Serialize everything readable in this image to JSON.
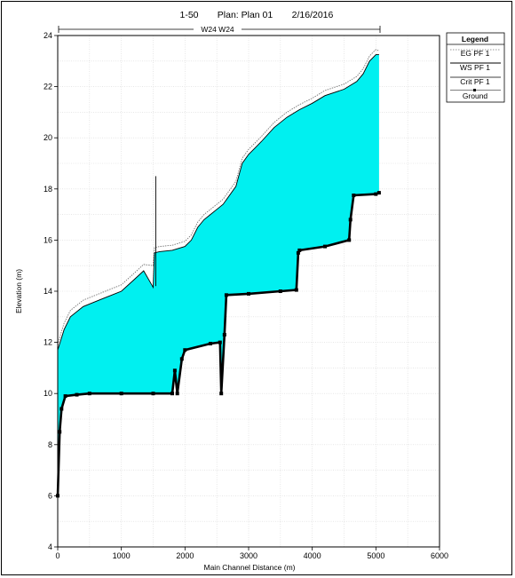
{
  "chart_data": {
    "type": "line",
    "title_parts": [
      "1-50",
      "Plan: Plan 01",
      "2/16/2016"
    ],
    "reach_label": "W24 W24",
    "xlabel": "Main Channel Distance (m)",
    "ylabel": "Elevation (m)",
    "xlim": [
      0,
      6000
    ],
    "ylim": [
      4,
      24
    ],
    "xticks": [
      0,
      1000,
      2000,
      3000,
      4000,
      5000,
      6000
    ],
    "yticks": [
      4,
      6,
      8,
      10,
      12,
      14,
      16,
      18,
      20,
      22,
      24
    ],
    "grid": true,
    "legend_title": "Legend",
    "legend_position": "top-right",
    "colors": {
      "water_fill": "#00f0f0",
      "ground": "#000000",
      "eg_line": "#777777",
      "ws_line": "#000000"
    },
    "series": [
      {
        "name": "EG  PF 1",
        "x": [
          0,
          50,
          100,
          200,
          400,
          700,
          1000,
          1200,
          1350,
          1500,
          1520,
          1600,
          1800,
          2000,
          2100,
          2200,
          2300,
          2400,
          2500,
          2600,
          2800,
          2900,
          3000,
          3100,
          3200,
          3400,
          3600,
          3800,
          4000,
          4200,
          4500,
          4700,
          4800,
          4900,
          5000,
          5050
        ],
        "y": [
          11.9,
          12.35,
          12.75,
          13.25,
          13.65,
          13.95,
          14.25,
          14.7,
          15.05,
          15.0,
          15.7,
          15.75,
          15.8,
          15.95,
          16.2,
          16.7,
          17.0,
          17.2,
          17.4,
          17.6,
          18.3,
          19.2,
          19.55,
          19.8,
          20.05,
          20.6,
          21.0,
          21.3,
          21.55,
          21.85,
          22.1,
          22.4,
          22.7,
          23.2,
          23.45,
          23.4
        ]
      },
      {
        "name": "WS  PF 1",
        "x": [
          0,
          50,
          100,
          200,
          400,
          700,
          1000,
          1200,
          1350,
          1500,
          1520,
          1600,
          1800,
          2000,
          2100,
          2200,
          2300,
          2400,
          2500,
          2600,
          2800,
          2900,
          3000,
          3100,
          3200,
          3400,
          3600,
          3800,
          4000,
          4200,
          4500,
          4700,
          4800,
          4900,
          5000,
          5050
        ],
        "y": [
          11.7,
          12.1,
          12.5,
          13.0,
          13.4,
          13.7,
          14.0,
          14.45,
          14.8,
          14.15,
          15.5,
          15.55,
          15.6,
          15.75,
          16.0,
          16.5,
          16.8,
          17.0,
          17.2,
          17.4,
          18.1,
          19.0,
          19.35,
          19.6,
          19.85,
          20.4,
          20.8,
          21.1,
          21.35,
          21.65,
          21.9,
          22.2,
          22.5,
          23.0,
          23.25,
          23.25
        ]
      },
      {
        "name": "Crit  PF 1",
        "x": [
          1540,
          1540
        ],
        "y": [
          14.2,
          18.5
        ]
      },
      {
        "name": "Ground",
        "x": [
          0,
          30,
          60,
          120,
          300,
          500,
          1000,
          1500,
          1800,
          1840,
          1880,
          1950,
          2000,
          2400,
          2550,
          2570,
          2620,
          2650,
          3000,
          3500,
          3750,
          3780,
          3800,
          4200,
          4580,
          4600,
          4650,
          5000,
          5050
        ],
        "y": [
          6.0,
          8.5,
          9.4,
          9.9,
          9.95,
          10.0,
          10.0,
          10.0,
          10.0,
          10.9,
          10.0,
          11.35,
          11.7,
          11.95,
          12.0,
          10.0,
          12.3,
          13.85,
          13.9,
          14.0,
          14.05,
          15.5,
          15.6,
          15.75,
          16.0,
          16.8,
          17.75,
          17.8,
          17.85
        ]
      }
    ]
  }
}
